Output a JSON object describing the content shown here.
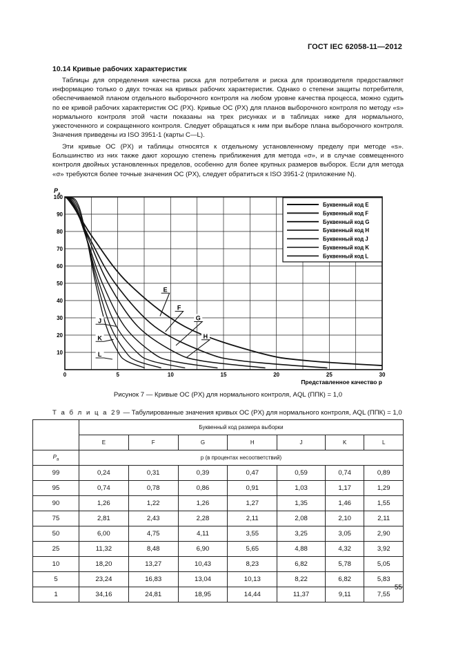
{
  "header": {
    "standard": "ГОСТ IEC 62058-11—2012"
  },
  "section": {
    "title": "10.14 Кривые рабочих характеристик"
  },
  "paragraphs": [
    "Таблицы для определения качества риска для потребителя и риска для производителя предоставляют информацию только о двух точках на кривых рабочих характеристик. Однако о степени защиты потребителя, обеспечиваемой планом отдельного выборочного контроля на любом уровне качества процесса, можно судить по ее кривой рабочих характеристик ОС (PX). Кривые ОС (PX) для планов выборочного контроля по методу «s» нормального контроля этой части показаны на трех рисунках и в таблицах ниже для нормального, ужесточенного и сокращенного контроля. Следует обращаться к ним при выборе плана выборочного контроля. Значения приведены из ISO 3951-1 (карты С—L).",
    "Эти кривые ОС (PX) и таблицы относятся к отдельному установленному пределу при методе «s». Большинство из них также дают хорошую степень приближения для метода «σ», и в случае совмещенного контроля двойных установленных пределов, особенно для более крупных размеров выборок. Если для метода «σ» требуются более точные значения ОС (PX), следует обратиться к ISO 3951-2 (приложение N)."
  ],
  "figure": {
    "caption": "Рисунок 7 — Кривые ОС (PX) для нормального контроля, AQL (ППК) = 1,0"
  },
  "chart_data": {
    "type": "line",
    "ylabel": "P",
    "ylabel_sub": "a",
    "xlabel": "Представленное качество p",
    "xlim": [
      0,
      30
    ],
    "ylim": [
      0,
      100
    ],
    "x_ticks": [
      "0",
      "5",
      "10",
      "15",
      "20",
      "25",
      "30"
    ],
    "y_ticks": [
      "10",
      "20",
      "30",
      "40",
      "50",
      "60",
      "70",
      "80",
      "90",
      "100"
    ],
    "grid": true,
    "legend_position": "top-right",
    "series": [
      {
        "name": "Буквенный код E",
        "tag": "E",
        "points": [
          [
            0.24,
            99
          ],
          [
            0.74,
            95
          ],
          [
            1.26,
            90
          ],
          [
            2.81,
            75
          ],
          [
            6.0,
            50
          ],
          [
            11.32,
            25
          ],
          [
            18.2,
            10
          ],
          [
            23.24,
            5
          ],
          [
            34.16,
            1
          ]
        ]
      },
      {
        "name": "Буквенный код F",
        "tag": "F",
        "points": [
          [
            0.31,
            99
          ],
          [
            0.78,
            95
          ],
          [
            1.22,
            90
          ],
          [
            2.43,
            75
          ],
          [
            4.75,
            50
          ],
          [
            8.48,
            25
          ],
          [
            13.27,
            10
          ],
          [
            16.83,
            5
          ],
          [
            24.81,
            1
          ]
        ]
      },
      {
        "name": "Буквенный код G",
        "tag": "G",
        "points": [
          [
            0.39,
            99
          ],
          [
            0.86,
            95
          ],
          [
            1.26,
            90
          ],
          [
            2.28,
            75
          ],
          [
            4.11,
            50
          ],
          [
            6.9,
            25
          ],
          [
            10.43,
            10
          ],
          [
            13.04,
            5
          ],
          [
            18.95,
            1
          ]
        ]
      },
      {
        "name": "Буквенный код H",
        "tag": "H",
        "points": [
          [
            0.47,
            99
          ],
          [
            0.91,
            95
          ],
          [
            1.27,
            90
          ],
          [
            2.11,
            75
          ],
          [
            3.55,
            50
          ],
          [
            5.65,
            25
          ],
          [
            8.23,
            10
          ],
          [
            10.13,
            5
          ],
          [
            14.44,
            1
          ]
        ]
      },
      {
        "name": "Буквенный код J",
        "tag": "J",
        "points": [
          [
            0.59,
            99
          ],
          [
            1.03,
            95
          ],
          [
            1.35,
            90
          ],
          [
            2.08,
            75
          ],
          [
            3.25,
            50
          ],
          [
            4.88,
            25
          ],
          [
            6.82,
            10
          ],
          [
            8.22,
            5
          ],
          [
            11.37,
            1
          ]
        ]
      },
      {
        "name": "Буквенный код K",
        "tag": "K",
        "points": [
          [
            0.74,
            99
          ],
          [
            1.17,
            95
          ],
          [
            1.46,
            90
          ],
          [
            2.1,
            75
          ],
          [
            3.05,
            50
          ],
          [
            4.32,
            25
          ],
          [
            5.78,
            10
          ],
          [
            6.82,
            5
          ],
          [
            9.11,
            1
          ]
        ]
      },
      {
        "name": "Буквенный код L",
        "tag": "L",
        "points": [
          [
            0.89,
            99
          ],
          [
            1.29,
            95
          ],
          [
            1.55,
            90
          ],
          [
            2.11,
            75
          ],
          [
            2.9,
            50
          ],
          [
            3.92,
            25
          ],
          [
            5.05,
            10
          ],
          [
            5.83,
            5
          ],
          [
            7.55,
            1
          ]
        ]
      }
    ],
    "annotations": [
      {
        "tag": "E",
        "x": 9.5,
        "y": 45.5,
        "lead_to": [
          9.0,
          31
        ]
      },
      {
        "tag": "F",
        "x": 10.8,
        "y": 35,
        "lead_to": [
          9.5,
          22
        ]
      },
      {
        "tag": "G",
        "x": 12.6,
        "y": 29,
        "lead_to": [
          10.5,
          14
        ]
      },
      {
        "tag": "H",
        "x": 13.3,
        "y": 18.5,
        "lead_to": [
          11.5,
          7
        ]
      },
      {
        "tag": "J",
        "x": 3.3,
        "y": 27.5,
        "lead_to": [
          4.9,
          25
        ]
      },
      {
        "tag": "K",
        "x": 3.3,
        "y": 17.5,
        "lead_to": [
          4.6,
          17.5
        ]
      },
      {
        "tag": "L",
        "x": 3.3,
        "y": 8,
        "lead_to": [
          4.5,
          6
        ]
      }
    ]
  },
  "table": {
    "caption_prefix": "Т а б л и ц а  29",
    "caption_text": " — Табулированные значения кривых ОС (PX) для нормального контроля, AQL (ППК) = 1,0",
    "group_header": "Буквенный код размера выборки",
    "codes": [
      "E",
      "F",
      "G",
      "H",
      "J",
      "K",
      "L"
    ],
    "pa_label": "P",
    "pa_sub": "a",
    "unit_header": "p (в процентах несоответствий)",
    "rows": [
      {
        "pa": "99",
        "values": [
          "0,24",
          "0,31",
          "0,39",
          "0,47",
          "0,59",
          "0,74",
          "0,89"
        ]
      },
      {
        "pa": "95",
        "values": [
          "0,74",
          "0,78",
          "0,86",
          "0,91",
          "1,03",
          "1,17",
          "1,29"
        ]
      },
      {
        "pa": "90",
        "values": [
          "1,26",
          "1,22",
          "1,26",
          "1,27",
          "1,35",
          "1,46",
          "1,55"
        ]
      },
      {
        "pa": "75",
        "values": [
          "2,81",
          "2,43",
          "2,28",
          "2,11",
          "2,08",
          "2,10",
          "2,11"
        ]
      },
      {
        "pa": "50",
        "values": [
          "6,00",
          "4,75",
          "4,11",
          "3,55",
          "3,25",
          "3,05",
          "2,90"
        ]
      },
      {
        "pa": "25",
        "values": [
          "11,32",
          "8,48",
          "6,90",
          "5,65",
          "4,88",
          "4,32",
          "3,92"
        ]
      },
      {
        "pa": "10",
        "values": [
          "18,20",
          "13,27",
          "10,43",
          "8,23",
          "6,82",
          "5,78",
          "5,05"
        ]
      },
      {
        "pa": "5",
        "values": [
          "23,24",
          "16,83",
          "13,04",
          "10,13",
          "8,22",
          "6,82",
          "5,83"
        ]
      },
      {
        "pa": "1",
        "values": [
          "34,16",
          "24,81",
          "18,95",
          "14,44",
          "11,37",
          "9,11",
          "7,55"
        ]
      }
    ]
  },
  "footer": {
    "page_number": "55"
  }
}
